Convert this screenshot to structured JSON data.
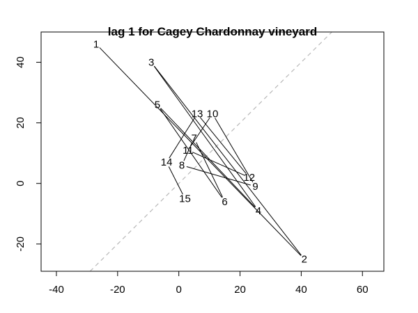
{
  "chart_data": {
    "type": "scatter",
    "subtype": "lag-plot-connected",
    "title": "lag 1 for Cagey Chardonnay vineyard",
    "xlabel": "",
    "ylabel": "",
    "xlim": [
      -45,
      67
    ],
    "ylim": [
      -29,
      50
    ],
    "x_ticks": [
      -40,
      -20,
      0,
      20,
      40,
      60
    ],
    "y_ticks": [
      -20,
      0,
      20,
      40
    ],
    "x_tick_labels": [
      "-40",
      "-20",
      "0",
      "20",
      "40",
      "60"
    ],
    "y_tick_labels": [
      "-20",
      "0",
      "20",
      "40"
    ],
    "reference_line": {
      "slope": 1,
      "intercept": 0,
      "style": "dashed",
      "color": "#b8b8b8"
    },
    "points": [
      {
        "label": "1",
        "x": -27,
        "y": 46
      },
      {
        "label": "2",
        "x": 41,
        "y": -25
      },
      {
        "label": "3",
        "x": -9,
        "y": 40
      },
      {
        "label": "4",
        "x": 26,
        "y": -9
      },
      {
        "label": "5",
        "x": -7,
        "y": 26
      },
      {
        "label": "6",
        "x": 15,
        "y": -6
      },
      {
        "label": "7",
        "x": 5,
        "y": 15
      },
      {
        "label": "8",
        "x": 1,
        "y": 6
      },
      {
        "label": "9",
        "x": 25,
        "y": -1
      },
      {
        "label": "10",
        "x": 11,
        "y": 23
      },
      {
        "label": "11",
        "x": 3,
        "y": 11
      },
      {
        "label": "12",
        "x": 23,
        "y": 2
      },
      {
        "label": "13",
        "x": 6,
        "y": 23
      },
      {
        "label": "14",
        "x": -4,
        "y": 7
      },
      {
        "label": "15",
        "x": 2,
        "y": -5
      }
    ]
  }
}
